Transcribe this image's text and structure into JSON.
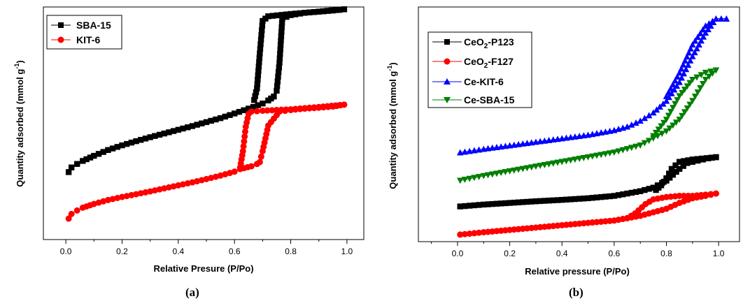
{
  "chart_data": [
    {
      "type": "line",
      "panel_label": "(a)",
      "xlabel": "Relative Presure (P/Po)",
      "ylabel": "Quantity adsorbed (mmol g",
      "ylabel_sup": "-1",
      "ylabel_close": ")",
      "xlim": [
        -0.08,
        1.06
      ],
      "ylim": [
        0,
        100
      ],
      "xticks": [
        0.0,
        0.2,
        0.4,
        0.6,
        0.8,
        1.0
      ],
      "xtick_labels": [
        "0.0",
        "0.2",
        "0.4",
        "0.6",
        "0.8",
        "1.0"
      ],
      "y_tick_labels_shown": false,
      "legend_position": "top-left",
      "series": [
        {
          "name": "SBA-15",
          "color": "#000000",
          "marker": "square",
          "adsorption": [
            [
              0.01,
              29
            ],
            [
              0.02,
              31
            ],
            [
              0.04,
              32.5
            ],
            [
              0.06,
              33.8
            ],
            [
              0.1,
              36
            ],
            [
              0.15,
              38.5
            ],
            [
              0.2,
              40.5
            ],
            [
              0.25,
              42.3
            ],
            [
              0.3,
              44
            ],
            [
              0.35,
              45.6
            ],
            [
              0.4,
              47.2
            ],
            [
              0.45,
              48.8
            ],
            [
              0.5,
              50.5
            ],
            [
              0.55,
              52.2
            ],
            [
              0.6,
              54.2
            ],
            [
              0.65,
              56.3
            ],
            [
              0.7,
              58.5
            ],
            [
              0.72,
              59.8
            ],
            [
              0.74,
              61.5
            ],
            [
              0.75,
              64
            ],
            [
              0.76,
              76
            ],
            [
              0.77,
              95
            ],
            [
              0.8,
              96.5
            ],
            [
              0.85,
              97.5
            ],
            [
              0.9,
              98
            ],
            [
              0.95,
              98.5
            ],
            [
              0.99,
              99
            ]
          ],
          "desorption": [
            [
              0.99,
              99
            ],
            [
              0.9,
              98
            ],
            [
              0.8,
              97
            ],
            [
              0.72,
              96
            ],
            [
              0.7,
              94
            ],
            [
              0.69,
              80
            ],
            [
              0.68,
              65
            ],
            [
              0.67,
              60
            ]
          ]
        },
        {
          "name": "KIT-6",
          "color": "#ff0000",
          "marker": "circle",
          "adsorption": [
            [
              0.01,
              9
            ],
            [
              0.02,
              11
            ],
            [
              0.04,
              12.5
            ],
            [
              0.06,
              13.7
            ],
            [
              0.1,
              15.3
            ],
            [
              0.15,
              17
            ],
            [
              0.2,
              18.3
            ],
            [
              0.25,
              19.5
            ],
            [
              0.3,
              20.7
            ],
            [
              0.35,
              22
            ],
            [
              0.4,
              23.3
            ],
            [
              0.45,
              24.6
            ],
            [
              0.5,
              26
            ],
            [
              0.55,
              27.5
            ],
            [
              0.6,
              29.2
            ],
            [
              0.62,
              30.3
            ],
            [
              0.66,
              31.5
            ],
            [
              0.68,
              32.5
            ],
            [
              0.69,
              33.3
            ],
            [
              0.7,
              38
            ],
            [
              0.72,
              49
            ],
            [
              0.76,
              55
            ],
            [
              0.8,
              55.7
            ],
            [
              0.85,
              56.3
            ],
            [
              0.9,
              56.7
            ],
            [
              0.95,
              57.2
            ],
            [
              0.99,
              58
            ]
          ],
          "desorption": [
            [
              0.99,
              58
            ],
            [
              0.9,
              57
            ],
            [
              0.8,
              56
            ],
            [
              0.7,
              55.4
            ],
            [
              0.66,
              55
            ],
            [
              0.65,
              54
            ],
            [
              0.64,
              48.5
            ],
            [
              0.63,
              38
            ],
            [
              0.62,
              31
            ]
          ]
        }
      ]
    },
    {
      "type": "line",
      "panel_label": "(b)",
      "xlabel": "Relative pressure (P/Po)",
      "ylabel": "Quantity adsorbed (mmol g",
      "ylabel_sup": "-1",
      "ylabel_close": ")",
      "xlim": [
        -0.15,
        1.08
      ],
      "ylim": [
        0,
        100
      ],
      "xticks": [
        0.0,
        0.2,
        0.4,
        0.6,
        0.8,
        1.0
      ],
      "xtick_labels": [
        "0.0",
        "0.2",
        "0.4",
        "0.6",
        "0.8",
        "1.0"
      ],
      "y_tick_labels_shown": false,
      "legend_position": "top-left",
      "series": [
        {
          "name": "CeO2-P123",
          "legend_main": "CeO",
          "legend_sub": "2",
          "legend_rest": "-P123",
          "color": "#000000",
          "marker": "square",
          "adsorption": [
            [
              0.01,
              15
            ],
            [
              0.1,
              15.8
            ],
            [
              0.2,
              16.5
            ],
            [
              0.3,
              17.2
            ],
            [
              0.4,
              17.8
            ],
            [
              0.5,
              18.5
            ],
            [
              0.6,
              19.5
            ],
            [
              0.65,
              20.5
            ],
            [
              0.7,
              21.5
            ],
            [
              0.75,
              23
            ],
            [
              0.8,
              26
            ],
            [
              0.85,
              31
            ],
            [
              0.88,
              33.5
            ],
            [
              0.92,
              34.5
            ],
            [
              0.96,
              35.5
            ],
            [
              0.99,
              36
            ]
          ],
          "desorption": [
            [
              0.99,
              36
            ],
            [
              0.9,
              35
            ],
            [
              0.85,
              34
            ],
            [
              0.82,
              31
            ],
            [
              0.8,
              27
            ],
            [
              0.78,
              24
            ],
            [
              0.76,
              22
            ]
          ]
        },
        {
          "name": "CeO2-F127",
          "legend_main": "CeO",
          "legend_sub": "2",
          "legend_rest": "-F127",
          "color": "#ff0000",
          "marker": "circle",
          "adsorption": [
            [
              0.01,
              3
            ],
            [
              0.1,
              4
            ],
            [
              0.2,
              5
            ],
            [
              0.3,
              6
            ],
            [
              0.4,
              7
            ],
            [
              0.5,
              8
            ],
            [
              0.6,
              9
            ],
            [
              0.65,
              10
            ],
            [
              0.7,
              11
            ],
            [
              0.75,
              12.5
            ],
            [
              0.8,
              14
            ],
            [
              0.85,
              16.5
            ],
            [
              0.9,
              18.5
            ],
            [
              0.95,
              19.5
            ],
            [
              0.99,
              20.5
            ]
          ],
          "desorption": [
            [
              0.99,
              20.5
            ],
            [
              0.95,
              20
            ],
            [
              0.9,
              19.5
            ],
            [
              0.85,
              19.5
            ],
            [
              0.8,
              19
            ],
            [
              0.75,
              18
            ],
            [
              0.72,
              16
            ],
            [
              0.68,
              12
            ],
            [
              0.65,
              10
            ]
          ]
        },
        {
          "name": "Ce-KIT-6",
          "legend_main": "Ce-KIT-6",
          "legend_sub": "",
          "legend_rest": "",
          "color": "#0000ff",
          "marker": "triangle-up",
          "adsorption": [
            [
              0.01,
              38
            ],
            [
              0.1,
              39.5
            ],
            [
              0.2,
              41
            ],
            [
              0.3,
              42.5
            ],
            [
              0.4,
              44
            ],
            [
              0.5,
              45.5
            ],
            [
              0.6,
              47.5
            ],
            [
              0.65,
              49
            ],
            [
              0.7,
              51.5
            ],
            [
              0.75,
              55
            ],
            [
              0.8,
              60
            ],
            [
              0.85,
              68
            ],
            [
              0.9,
              79
            ],
            [
              0.95,
              89
            ],
            [
              0.99,
              95
            ],
            [
              1.03,
              95
            ]
          ],
          "desorption": [
            [
              1.03,
              95
            ],
            [
              0.99,
              95
            ],
            [
              0.95,
              92
            ],
            [
              0.9,
              84
            ],
            [
              0.85,
              72
            ],
            [
              0.8,
              62
            ]
          ]
        },
        {
          "name": "Ce-SBA-15",
          "legend_main": "Ce-SBA-15",
          "legend_sub": "",
          "legend_rest": "",
          "color": "#007f00",
          "marker": "triangle-down",
          "adsorption": [
            [
              0.01,
              26
            ],
            [
              0.1,
              28
            ],
            [
              0.2,
              30
            ],
            [
              0.3,
              32
            ],
            [
              0.4,
              34
            ],
            [
              0.5,
              36
            ],
            [
              0.6,
              38
            ],
            [
              0.7,
              41
            ],
            [
              0.75,
              44
            ],
            [
              0.8,
              47
            ],
            [
              0.85,
              52
            ],
            [
              0.9,
              60
            ],
            [
              0.95,
              69
            ],
            [
              0.99,
              73
            ]
          ],
          "desorption": [
            [
              0.99,
              73
            ],
            [
              0.95,
              72
            ],
            [
              0.9,
              69
            ],
            [
              0.85,
              62
            ],
            [
              0.8,
              52
            ],
            [
              0.75,
              45
            ]
          ]
        }
      ]
    }
  ]
}
